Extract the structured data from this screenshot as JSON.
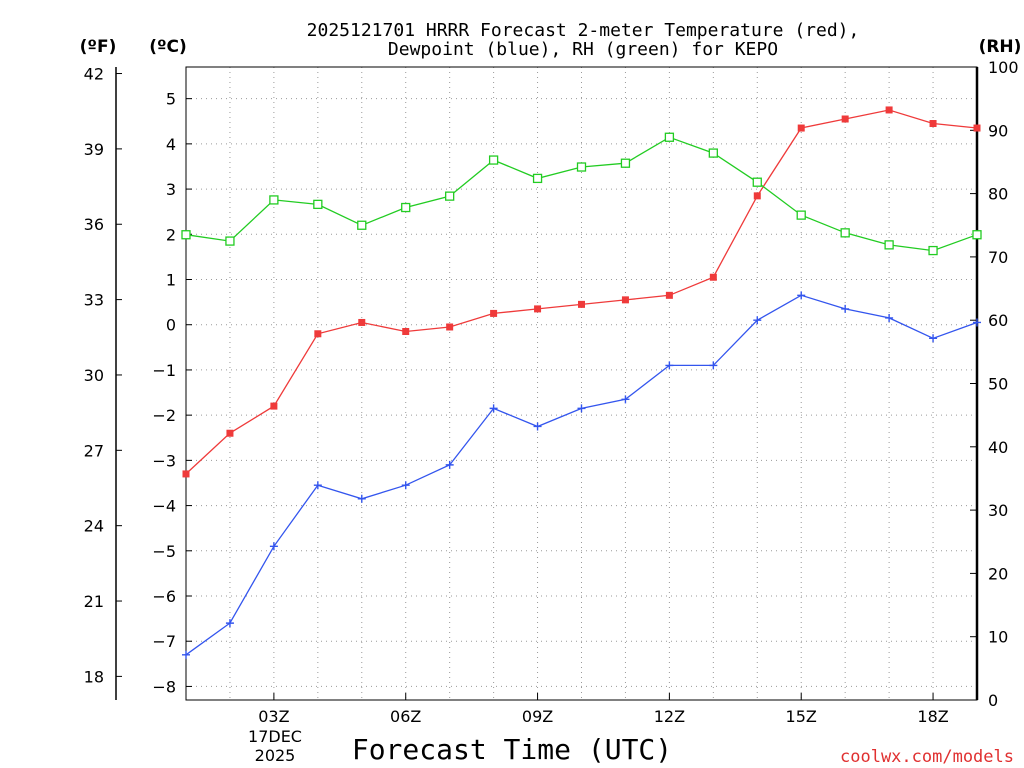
{
  "chart_data": {
    "type": "line",
    "title_line1": "2025121701 HRRR Forecast 2-meter Temperature (red),",
    "title_line2": "Dewpoint (blue), RH (green) for KEPO",
    "xlabel": "Forecast Time (UTC)",
    "credit": "coolwx.com/models",
    "units": {
      "f": "(ºF)",
      "c": "(ºC)",
      "rh": "(RH)"
    },
    "hours": [
      1,
      2,
      3,
      4,
      5,
      6,
      7,
      8,
      9,
      10,
      11,
      12,
      13,
      14,
      15,
      16,
      17,
      18,
      19
    ],
    "x_ticks": [
      {
        "hour": 3,
        "label": "03Z"
      },
      {
        "hour": 6,
        "label": "06Z"
      },
      {
        "hour": 9,
        "label": "09Z"
      },
      {
        "hour": 12,
        "label": "12Z"
      },
      {
        "hour": 15,
        "label": "15Z"
      },
      {
        "hour": 18,
        "label": "18Z"
      }
    ],
    "date_label_day": "17DEC",
    "date_label_year": "2025",
    "xlim": [
      1,
      19
    ],
    "c_axis": {
      "ylim": [
        -8.3,
        5.7
      ],
      "ticks": [
        -8,
        -7,
        -6,
        -5,
        -4,
        -3,
        -2,
        -1,
        0,
        1,
        2,
        3,
        4,
        5
      ]
    },
    "f_axis": {
      "ticks": [
        18,
        21,
        24,
        27,
        30,
        33,
        36,
        39,
        42
      ]
    },
    "rh_axis": {
      "ylim": [
        0,
        100
      ],
      "ticks": [
        0,
        10,
        20,
        30,
        40,
        50,
        60,
        70,
        80,
        90,
        100
      ]
    },
    "series": [
      {
        "name": "Temperature",
        "axis": "c",
        "color": "#ef3a3a",
        "marker": "filled-square",
        "values": [
          -3.3,
          -2.4,
          -1.8,
          -0.2,
          0.05,
          -0.15,
          -0.05,
          0.25,
          0.35,
          0.45,
          0.55,
          0.65,
          1.05,
          2.85,
          4.35,
          4.55,
          4.75,
          4.45,
          4.35
        ]
      },
      {
        "name": "Dewpoint",
        "axis": "c",
        "color": "#3355ee",
        "marker": "plus",
        "values": [
          -7.3,
          -6.6,
          -4.9,
          -3.55,
          -3.85,
          -3.55,
          -3.1,
          -1.85,
          -2.25,
          -1.85,
          -1.65,
          -0.9,
          -0.9,
          0.1,
          0.65,
          0.35,
          0.15,
          -0.3,
          0.05
        ]
      },
      {
        "name": "RH",
        "axis": "rh",
        "color": "#22cc22",
        "marker": "open-square",
        "values": [
          73.5,
          72.5,
          79,
          78.3,
          75,
          77.8,
          79.6,
          85.3,
          82.4,
          84.2,
          84.8,
          88.9,
          86.4,
          81.8,
          76.6,
          73.8,
          71.9,
          71,
          73.5
        ]
      }
    ]
  }
}
